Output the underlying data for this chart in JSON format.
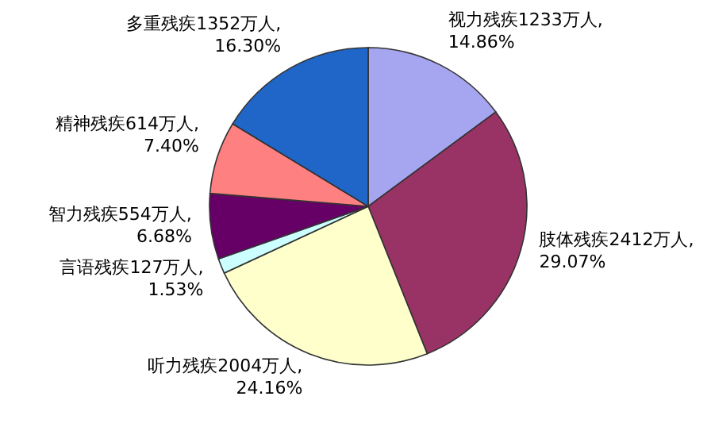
{
  "chart_data": {
    "type": "pie",
    "categories": [
      "视力残疾",
      "肢体残疾",
      "听力残疾",
      "言语残疾",
      "智力残疾",
      "精神残疾",
      "多重残疾"
    ],
    "values": [
      1233,
      2412,
      2004,
      127,
      554,
      614,
      1352
    ],
    "value_labels": [
      "1233万人,\n14.86%",
      "2412万人,\n29.07%",
      "2004万人,\n24.16%",
      "127万人,\n1.53%",
      "554万人,\n6.68%",
      "614万人,\n7.40%",
      "1352万人,\n16.30%"
    ],
    "colors": [
      "#a5a5f0",
      "#993366",
      "#ffffcc",
      "#ccffff",
      "#660066",
      "#ff8080",
      "#1f66c8"
    ]
  }
}
